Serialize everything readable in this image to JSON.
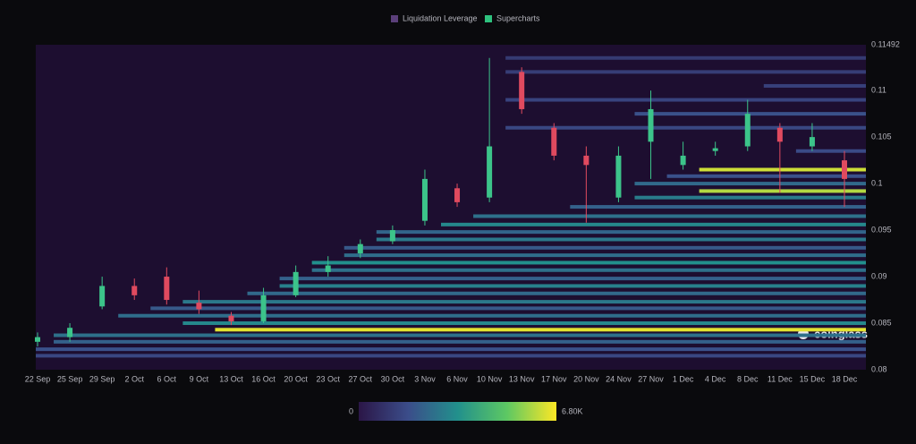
{
  "chart_data": {
    "type": "heatmap",
    "legend": [
      "Liquidation Leverage",
      "Supercharts"
    ],
    "legend_colors": [
      "#5b3f7a",
      "#2ec27e"
    ],
    "watermark": "coinglass",
    "categories": [
      "22 Sep",
      "25 Sep",
      "29 Sep",
      "2 Oct",
      "6 Oct",
      "9 Oct",
      "13 Oct",
      "16 Oct",
      "20 Oct",
      "23 Oct",
      "27 Oct",
      "30 Oct",
      "3 Nov",
      "6 Nov",
      "10 Nov",
      "13 Nov",
      "17 Nov",
      "20 Nov",
      "24 Nov",
      "27 Nov",
      "1 Dec",
      "4 Dec",
      "8 Dec",
      "11 Dec",
      "15 Dec",
      "18 Dec"
    ],
    "candles": {
      "open": [
        0.083,
        0.0835,
        0.0868,
        0.089,
        0.09,
        0.0872,
        0.0858,
        0.0852,
        0.088,
        0.0905,
        0.0925,
        0.0938,
        0.096,
        0.0995,
        0.0985,
        0.112,
        0.106,
        0.103,
        0.0985,
        0.1045,
        0.102,
        0.1035,
        0.104,
        0.106,
        0.104,
        0.1025
      ],
      "high": [
        0.084,
        0.085,
        0.09,
        0.0898,
        0.091,
        0.0885,
        0.0862,
        0.0888,
        0.0912,
        0.0922,
        0.094,
        0.0955,
        0.1015,
        0.1,
        0.1135,
        0.1125,
        0.1065,
        0.104,
        0.104,
        0.11,
        0.1045,
        0.1045,
        0.109,
        0.1065,
        0.1065,
        0.1035
      ],
      "low": [
        0.0825,
        0.083,
        0.0865,
        0.0875,
        0.087,
        0.086,
        0.0848,
        0.085,
        0.0878,
        0.09,
        0.092,
        0.0935,
        0.0955,
        0.0975,
        0.098,
        0.1075,
        0.1025,
        0.0958,
        0.098,
        0.1005,
        0.1015,
        0.103,
        0.1035,
        0.099,
        0.1035,
        0.0975
      ],
      "close": [
        0.0835,
        0.0845,
        0.089,
        0.088,
        0.0875,
        0.0865,
        0.0852,
        0.088,
        0.0905,
        0.0912,
        0.0935,
        0.095,
        0.1005,
        0.098,
        0.104,
        0.108,
        0.103,
        0.102,
        0.103,
        0.108,
        0.103,
        0.1038,
        0.1075,
        0.1045,
        0.105,
        0.1005
      ],
      "up_color": "#3cc48a",
      "down_color": "#e04a5f"
    },
    "bands": {
      "prices": [
        0.0815,
        0.0822,
        0.083,
        0.0837,
        0.0843,
        0.085,
        0.0858,
        0.0866,
        0.0873,
        0.0882,
        0.089,
        0.0898,
        0.0907,
        0.0915,
        0.0923,
        0.0931,
        0.094,
        0.0948,
        0.0956,
        0.0965,
        0.0975,
        0.0985,
        0.0992,
        0.1,
        0.1008,
        0.1015,
        0.1035,
        0.106,
        0.1075,
        0.109,
        0.1105,
        0.112,
        0.1135
      ],
      "start": [
        "22 Sep",
        "22 Sep",
        "25 Sep",
        "25 Sep",
        "13 Oct",
        "9 Oct",
        "2 Oct",
        "6 Oct",
        "9 Oct",
        "16 Oct",
        "20 Oct",
        "20 Oct",
        "23 Oct",
        "23 Oct",
        "27 Oct",
        "27 Oct",
        "30 Oct",
        "30 Oct",
        "6 Nov",
        "10 Nov",
        "20 Nov",
        "27 Nov",
        "4 Dec",
        "27 Nov",
        "1 Dec",
        "4 Dec",
        "15 Dec",
        "13 Nov",
        "27 Nov",
        "13 Nov",
        "11 Dec",
        "13 Nov",
        "13 Nov"
      ],
      "values": [
        1500,
        1800,
        2200,
        2600,
        6500,
        3200,
        2500,
        2000,
        2800,
        2400,
        3000,
        2200,
        2600,
        3400,
        2500,
        2000,
        2800,
        2300,
        3200,
        2600,
        2200,
        2900,
        6000,
        2400,
        1800,
        6300,
        1600,
        1500,
        1800,
        1400,
        1300,
        1200,
        1100
      ]
    },
    "colormap": [
      "#2b1647",
      "#3b4d8a",
      "#22908c",
      "#5dc863",
      "#fde725"
    ],
    "colorbar": {
      "lim": [
        0,
        6800
      ],
      "ticks": [
        0,
        {
          "value": 6800,
          "label": "6.80K"
        }
      ]
    },
    "ylim": [
      0.08,
      0.11492
    ],
    "yticks": [
      0.08,
      0.085,
      0.09,
      0.095,
      0.1,
      0.105,
      0.11,
      0.11492
    ],
    "grid": false
  }
}
